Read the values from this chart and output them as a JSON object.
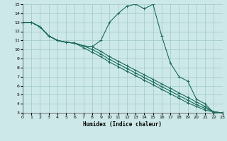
{
  "xlabel": "Humidex (Indice chaleur)",
  "bg_color": "#cde8e8",
  "grid_color": "#a0c8c8",
  "line_color": "#1a6b5a",
  "xlim": [
    0,
    23
  ],
  "ylim": [
    3,
    15
  ],
  "xticks": [
    0,
    1,
    2,
    3,
    4,
    5,
    6,
    7,
    8,
    9,
    10,
    11,
    12,
    13,
    14,
    15,
    16,
    17,
    18,
    19,
    20,
    21,
    22,
    23
  ],
  "yticks": [
    3,
    4,
    5,
    6,
    7,
    8,
    9,
    10,
    11,
    12,
    13,
    14,
    15
  ],
  "series1_y": [
    13,
    13,
    12.5,
    11.5,
    11,
    10.8,
    10.7,
    10.4,
    10.3,
    11.0,
    13.0,
    14.0,
    14.8,
    15.0,
    14.5,
    15.0,
    11.5,
    8.5,
    7.0,
    6.5,
    4.5,
    4.0,
    3.0,
    3.0
  ],
  "series2_y": [
    13,
    13,
    12.5,
    11.5,
    11,
    10.8,
    10.7,
    10.4,
    10.3,
    9.8,
    9.2,
    8.7,
    8.2,
    7.7,
    7.2,
    6.7,
    6.2,
    5.7,
    5.2,
    4.7,
    4.2,
    3.7,
    3.1,
    3.0
  ],
  "series3_y": [
    13,
    13,
    12.5,
    11.5,
    11,
    10.8,
    10.7,
    10.4,
    10.0,
    9.5,
    8.9,
    8.4,
    7.9,
    7.4,
    6.9,
    6.4,
    5.9,
    5.4,
    4.9,
    4.4,
    3.9,
    3.5,
    3.1,
    3.0
  ],
  "series4_y": [
    13,
    13,
    12.5,
    11.5,
    11,
    10.8,
    10.7,
    10.2,
    9.7,
    9.2,
    8.6,
    8.1,
    7.6,
    7.1,
    6.6,
    6.1,
    5.6,
    5.1,
    4.6,
    4.1,
    3.7,
    3.3,
    3.1,
    3.0
  ]
}
